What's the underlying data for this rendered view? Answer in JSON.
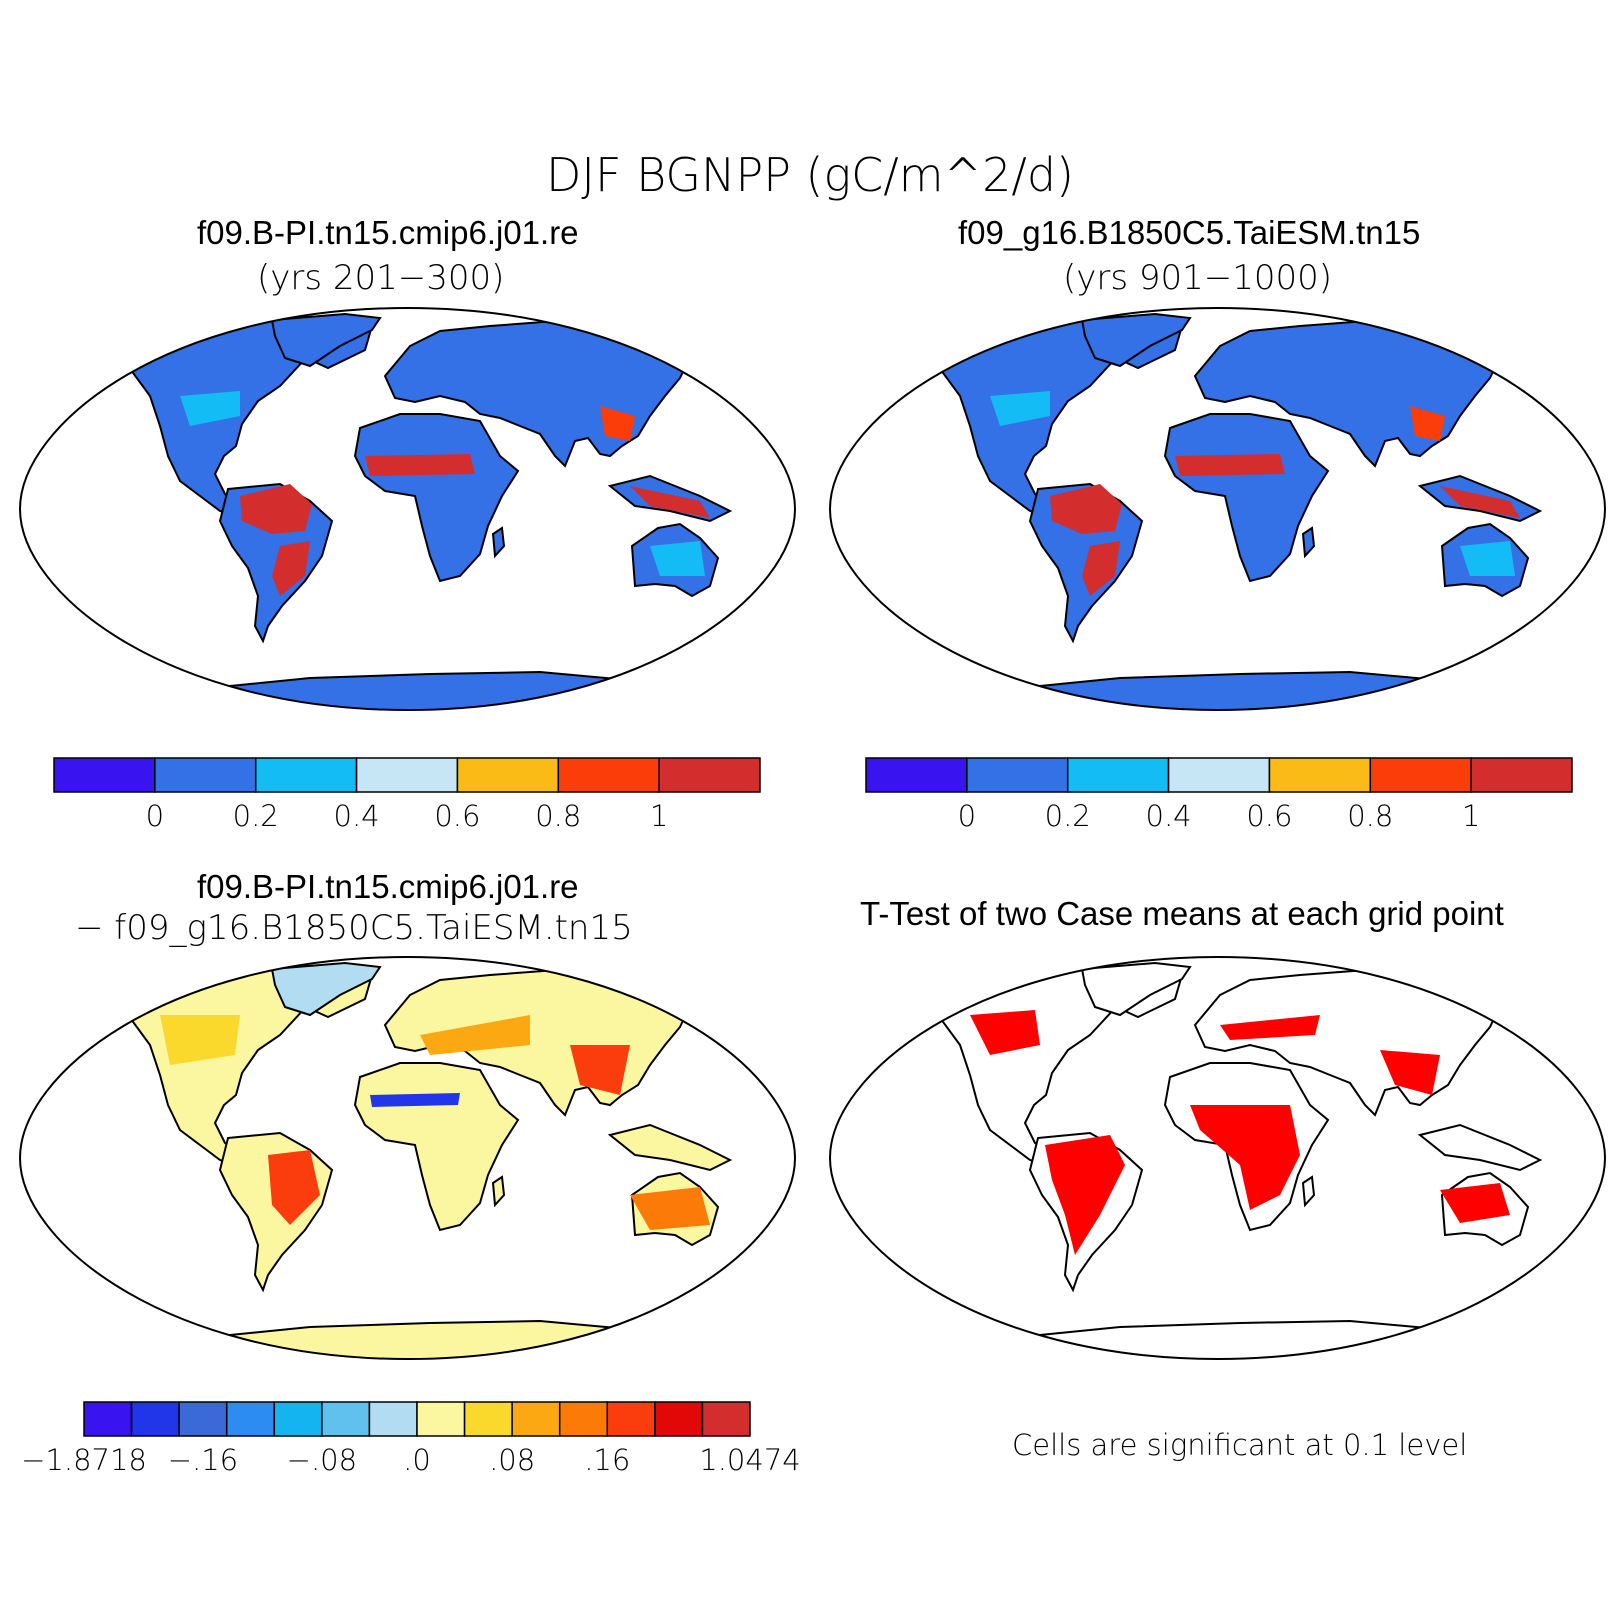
{
  "figure_title": "DJF BGNPP (gC/m^2/d)",
  "panels": [
    {
      "title": "f09.B-PI.tn15.cmip6.j01.re",
      "subtitle": "(yrs 201−300)"
    },
    {
      "title": "f09_g16.B1850C5.TaiESM.tn15",
      "subtitle": "(yrs 901−1000)"
    },
    {
      "title": "f09.B-PI.tn15.cmip6.j01.re",
      "subtitle": "− f09_g16.B1850C5.TaiESM.tn15"
    },
    {
      "title": "T-Test of two Case means at each grid point",
      "subtitle": ""
    }
  ],
  "colorbar_abs": {
    "colors": [
      "#3a14f0",
      "#3470e6",
      "#14bcf5",
      "#c6e6f6",
      "#fbbb17",
      "#fb3d0a",
      "#d42d2d"
    ],
    "labels": [
      "0",
      "0.2",
      "0.4",
      "0.6",
      "0.8",
      "1"
    ]
  },
  "colorbar_diff": {
    "colors": [
      "#3a14f0",
      "#2036e8",
      "#3a6ad8",
      "#2c8cf2",
      "#14b4f0",
      "#60c0ee",
      "#b2dcf2",
      "#fbf7a0",
      "#fbd82c",
      "#fba812",
      "#fb7a08",
      "#fb3c0c",
      "#e20808",
      "#d42d2d"
    ],
    "labels": [
      "−1.8718",
      "−.16",
      "−.08",
      ".0",
      ".08",
      ".16",
      "1.0474"
    ]
  },
  "significance_note": "Cells are significant at 0.1 level",
  "colors": {
    "land_abs": "#3470e6",
    "land_diff": "#fbf7a0",
    "signif": "#ff0000",
    "tropics": "#d42d2d"
  }
}
